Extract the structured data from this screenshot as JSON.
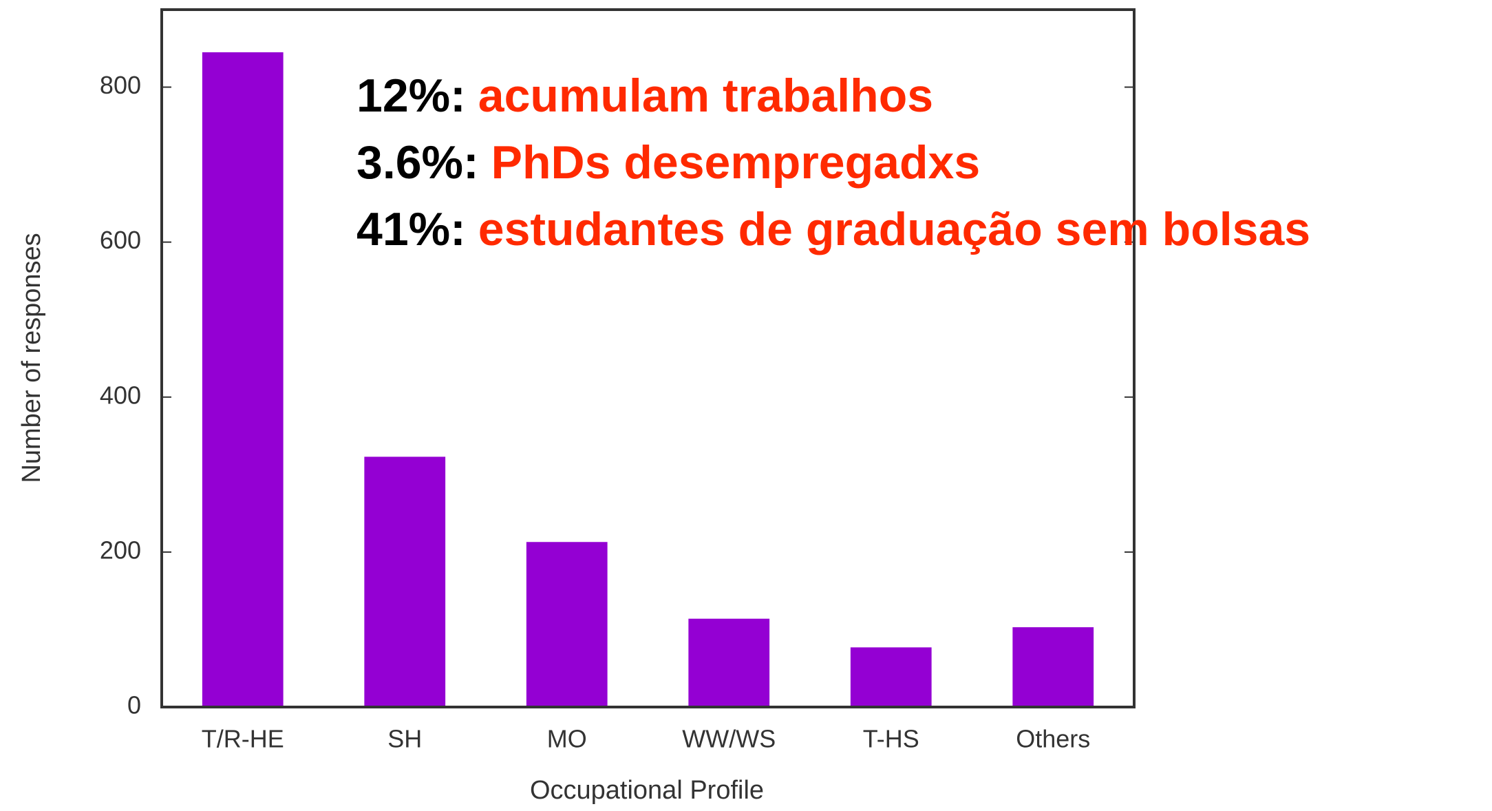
{
  "chart_data": {
    "type": "bar",
    "x_label": "Occupational Profile",
    "y_label": "Number of responses",
    "categories": [
      "T/R-HE",
      "SH",
      "MO",
      "WW/WS",
      "T-HS",
      "Others"
    ],
    "values": [
      845,
      323,
      213,
      114,
      77,
      103
    ],
    "color": "#9400d3",
    "ylim": [
      0,
      900
    ],
    "yticks": [
      0,
      200,
      400,
      600,
      800
    ],
    "grid": false,
    "annotations": [
      {
        "prefix": "12%:",
        "text": "acumulam trabalhos"
      },
      {
        "prefix": "3.6%:",
        "text": "PhDs desempregadxs"
      },
      {
        "prefix": "41%:",
        "text": "estudantes de graduação sem bolsas"
      }
    ]
  }
}
